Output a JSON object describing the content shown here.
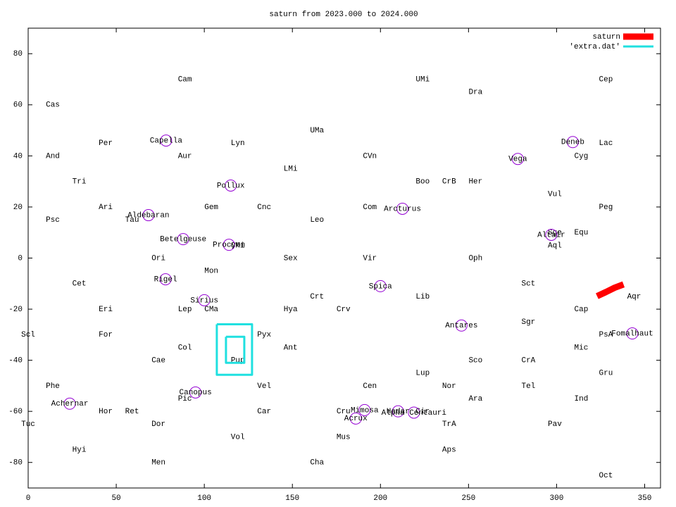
{
  "chart_data": {
    "type": "scatter",
    "title": "saturn from 2023.000 to 2024.000",
    "xlim": [
      0,
      359
    ],
    "ylim": [
      -90,
      90
    ],
    "xticks": [
      0,
      50,
      100,
      150,
      200,
      250,
      300,
      350
    ],
    "yticks": [
      -80,
      -60,
      -40,
      -20,
      0,
      20,
      40,
      60,
      80
    ],
    "legend": "top right",
    "series": [
      {
        "name": "saturn",
        "color": "#ff0000",
        "x": [
          323,
          328,
          333,
          338
        ],
        "y": [
          -14.9,
          -13.3,
          -11.6,
          -10.3
        ]
      },
      {
        "name": "'extra.dat'",
        "color": "#20e0e0",
        "x": [
          107.1,
          127.1,
          127.1,
          107.1,
          107.1,
          null,
          112.3,
          122.7,
          122.7,
          112.3,
          112.3
        ],
        "y": [
          -25.9,
          -25.9,
          -45.7,
          -45.7,
          -25.9,
          null,
          -30.8,
          -30.8,
          -41,
          -41,
          -30.8
        ]
      }
    ],
    "stars": {
      "color": "#9400d3",
      "points": [
        {
          "name": "Capella",
          "x": 78.3,
          "y": 46
        },
        {
          "name": "Deneb",
          "x": 309.2,
          "y": 45.4
        },
        {
          "name": "Vega",
          "x": 278,
          "y": 38.8
        },
        {
          "name": "Pollux",
          "x": 115,
          "y": 28.4
        },
        {
          "name": "Arcturus",
          "x": 212.5,
          "y": 19.3
        },
        {
          "name": "Aldebaran",
          "x": 68.3,
          "y": 16.8
        },
        {
          "name": "Altair",
          "x": 297,
          "y": 9.1
        },
        {
          "name": "Betelgeuse",
          "x": 88,
          "y": 7.4
        },
        {
          "name": "Procyon",
          "x": 114,
          "y": 5.2
        },
        {
          "name": "Rigel",
          "x": 78,
          "y": -8.3
        },
        {
          "name": "Spica",
          "x": 200,
          "y": -11
        },
        {
          "name": "Sirius",
          "x": 100,
          "y": -16.5
        },
        {
          "name": "Antares",
          "x": 246,
          "y": -26.4
        },
        {
          "name": "Fomalhaut",
          "x": 343,
          "y": -29.5
        },
        {
          "name": "Canopus",
          "x": 95,
          "y": -52.6
        },
        {
          "name": "Achernar",
          "x": 23.6,
          "y": -57
        },
        {
          "name": "Mimosa",
          "x": 191,
          "y": -59.5
        },
        {
          "name": "Hadar",
          "x": 210,
          "y": -60
        },
        {
          "name": "Alpha Centauri",
          "x": 219,
          "y": -60.5
        },
        {
          "name": "Acrux",
          "x": 186,
          "y": -62.8
        }
      ]
    },
    "labels": [
      {
        "text": "Cam",
        "x": 89,
        "y": 70
      },
      {
        "text": "UMi",
        "x": 224,
        "y": 70
      },
      {
        "text": "Cep",
        "x": 328,
        "y": 70
      },
      {
        "text": "Dra",
        "x": 254,
        "y": 65
      },
      {
        "text": "Cas",
        "x": 14,
        "y": 60
      },
      {
        "text": "UMa",
        "x": 164,
        "y": 50
      },
      {
        "text": "Per",
        "x": 44,
        "y": 45
      },
      {
        "text": "Lyn",
        "x": 119,
        "y": 45
      },
      {
        "text": "Lac",
        "x": 328,
        "y": 45
      },
      {
        "text": "And",
        "x": 14,
        "y": 40
      },
      {
        "text": "Aur",
        "x": 89,
        "y": 40
      },
      {
        "text": "CVn",
        "x": 194,
        "y": 40
      },
      {
        "text": "Cyg",
        "x": 314,
        "y": 40
      },
      {
        "text": "LMi",
        "x": 149,
        "y": 35
      },
      {
        "text": "Tri",
        "x": 29,
        "y": 30
      },
      {
        "text": "Boo",
        "x": 224,
        "y": 30
      },
      {
        "text": "CrB",
        "x": 239,
        "y": 30
      },
      {
        "text": "Her",
        "x": 254,
        "y": 30
      },
      {
        "text": "Vul",
        "x": 299,
        "y": 25
      },
      {
        "text": "Ari",
        "x": 44,
        "y": 20
      },
      {
        "text": "Gem",
        "x": 104,
        "y": 20
      },
      {
        "text": "Cnc",
        "x": 134,
        "y": 20
      },
      {
        "text": "Com",
        "x": 194,
        "y": 20
      },
      {
        "text": "Peg",
        "x": 328,
        "y": 20
      },
      {
        "text": "Psc",
        "x": 14,
        "y": 15
      },
      {
        "text": "Tau",
        "x": 59,
        "y": 15
      },
      {
        "text": "Leo",
        "x": 164,
        "y": 15
      },
      {
        "text": "Sge",
        "x": 299,
        "y": 10
      },
      {
        "text": "Equ",
        "x": 314,
        "y": 10
      },
      {
        "text": "Aql",
        "x": 299,
        "y": 5
      },
      {
        "text": "CMi",
        "x": 119,
        "y": 5
      },
      {
        "text": "Ori",
        "x": 74,
        "y": 0
      },
      {
        "text": "Sex",
        "x": 149,
        "y": 0
      },
      {
        "text": "Vir",
        "x": 194,
        "y": 0
      },
      {
        "text": "Oph",
        "x": 254,
        "y": 0
      },
      {
        "text": "Mon",
        "x": 104,
        "y": -5
      },
      {
        "text": "Cet",
        "x": 29,
        "y": -10
      },
      {
        "text": "Sct",
        "x": 284,
        "y": -10
      },
      {
        "text": "Crt",
        "x": 164,
        "y": -15
      },
      {
        "text": "Lib",
        "x": 224,
        "y": -15
      },
      {
        "text": "Aqr",
        "x": 344,
        "y": -15
      },
      {
        "text": "Eri",
        "x": 44,
        "y": -20
      },
      {
        "text": "Lep",
        "x": 89,
        "y": -20
      },
      {
        "text": "CMa",
        "x": 104,
        "y": -20
      },
      {
        "text": "Hya",
        "x": 149,
        "y": -20
      },
      {
        "text": "Crv",
        "x": 179,
        "y": -20
      },
      {
        "text": "Cap",
        "x": 314,
        "y": -20
      },
      {
        "text": "Sgr",
        "x": 284,
        "y": -25
      },
      {
        "text": "Scl",
        "x": 0,
        "y": -30
      },
      {
        "text": "For",
        "x": 44,
        "y": -30
      },
      {
        "text": "Pyx",
        "x": 134,
        "y": -30
      },
      {
        "text": "PsA",
        "x": 328,
        "y": -30
      },
      {
        "text": "Col",
        "x": 89,
        "y": -35
      },
      {
        "text": "Ant",
        "x": 149,
        "y": -35
      },
      {
        "text": "Mic",
        "x": 314,
        "y": -35
      },
      {
        "text": "Cae",
        "x": 74,
        "y": -40
      },
      {
        "text": "Pup",
        "x": 119,
        "y": -40
      },
      {
        "text": "Sco",
        "x": 254,
        "y": -40
      },
      {
        "text": "CrA",
        "x": 284,
        "y": -40
      },
      {
        "text": "Lup",
        "x": 224,
        "y": -45
      },
      {
        "text": "Gru",
        "x": 328,
        "y": -45
      },
      {
        "text": "Phe",
        "x": 14,
        "y": -50
      },
      {
        "text": "Vel",
        "x": 134,
        "y": -50
      },
      {
        "text": "Cen",
        "x": 194,
        "y": -50
      },
      {
        "text": "Nor",
        "x": 239,
        "y": -50
      },
      {
        "text": "Tel",
        "x": 284,
        "y": -50
      },
      {
        "text": "Pic",
        "x": 89,
        "y": -55
      },
      {
        "text": "Ara",
        "x": 254,
        "y": -55
      },
      {
        "text": "Ind",
        "x": 314,
        "y": -55
      },
      {
        "text": "Hor",
        "x": 44,
        "y": -60
      },
      {
        "text": "Ret",
        "x": 59,
        "y": -60
      },
      {
        "text": "Car",
        "x": 134,
        "y": -60
      },
      {
        "text": "Cru",
        "x": 179,
        "y": -60
      },
      {
        "text": "Cir",
        "x": 224,
        "y": -60
      },
      {
        "text": "Tuc",
        "x": 0,
        "y": -65
      },
      {
        "text": "Dor",
        "x": 74,
        "y": -65
      },
      {
        "text": "TrA",
        "x": 239,
        "y": -65
      },
      {
        "text": "Pav",
        "x": 299,
        "y": -65
      },
      {
        "text": "Vol",
        "x": 119,
        "y": -70
      },
      {
        "text": "Mus",
        "x": 179,
        "y": -70
      },
      {
        "text": "Hyi",
        "x": 29,
        "y": -75
      },
      {
        "text": "Aps",
        "x": 239,
        "y": -75
      },
      {
        "text": "Men",
        "x": 74,
        "y": -80
      },
      {
        "text": "Cha",
        "x": 164,
        "y": -80
      },
      {
        "text": "Oct",
        "x": 328,
        "y": -85
      }
    ]
  }
}
